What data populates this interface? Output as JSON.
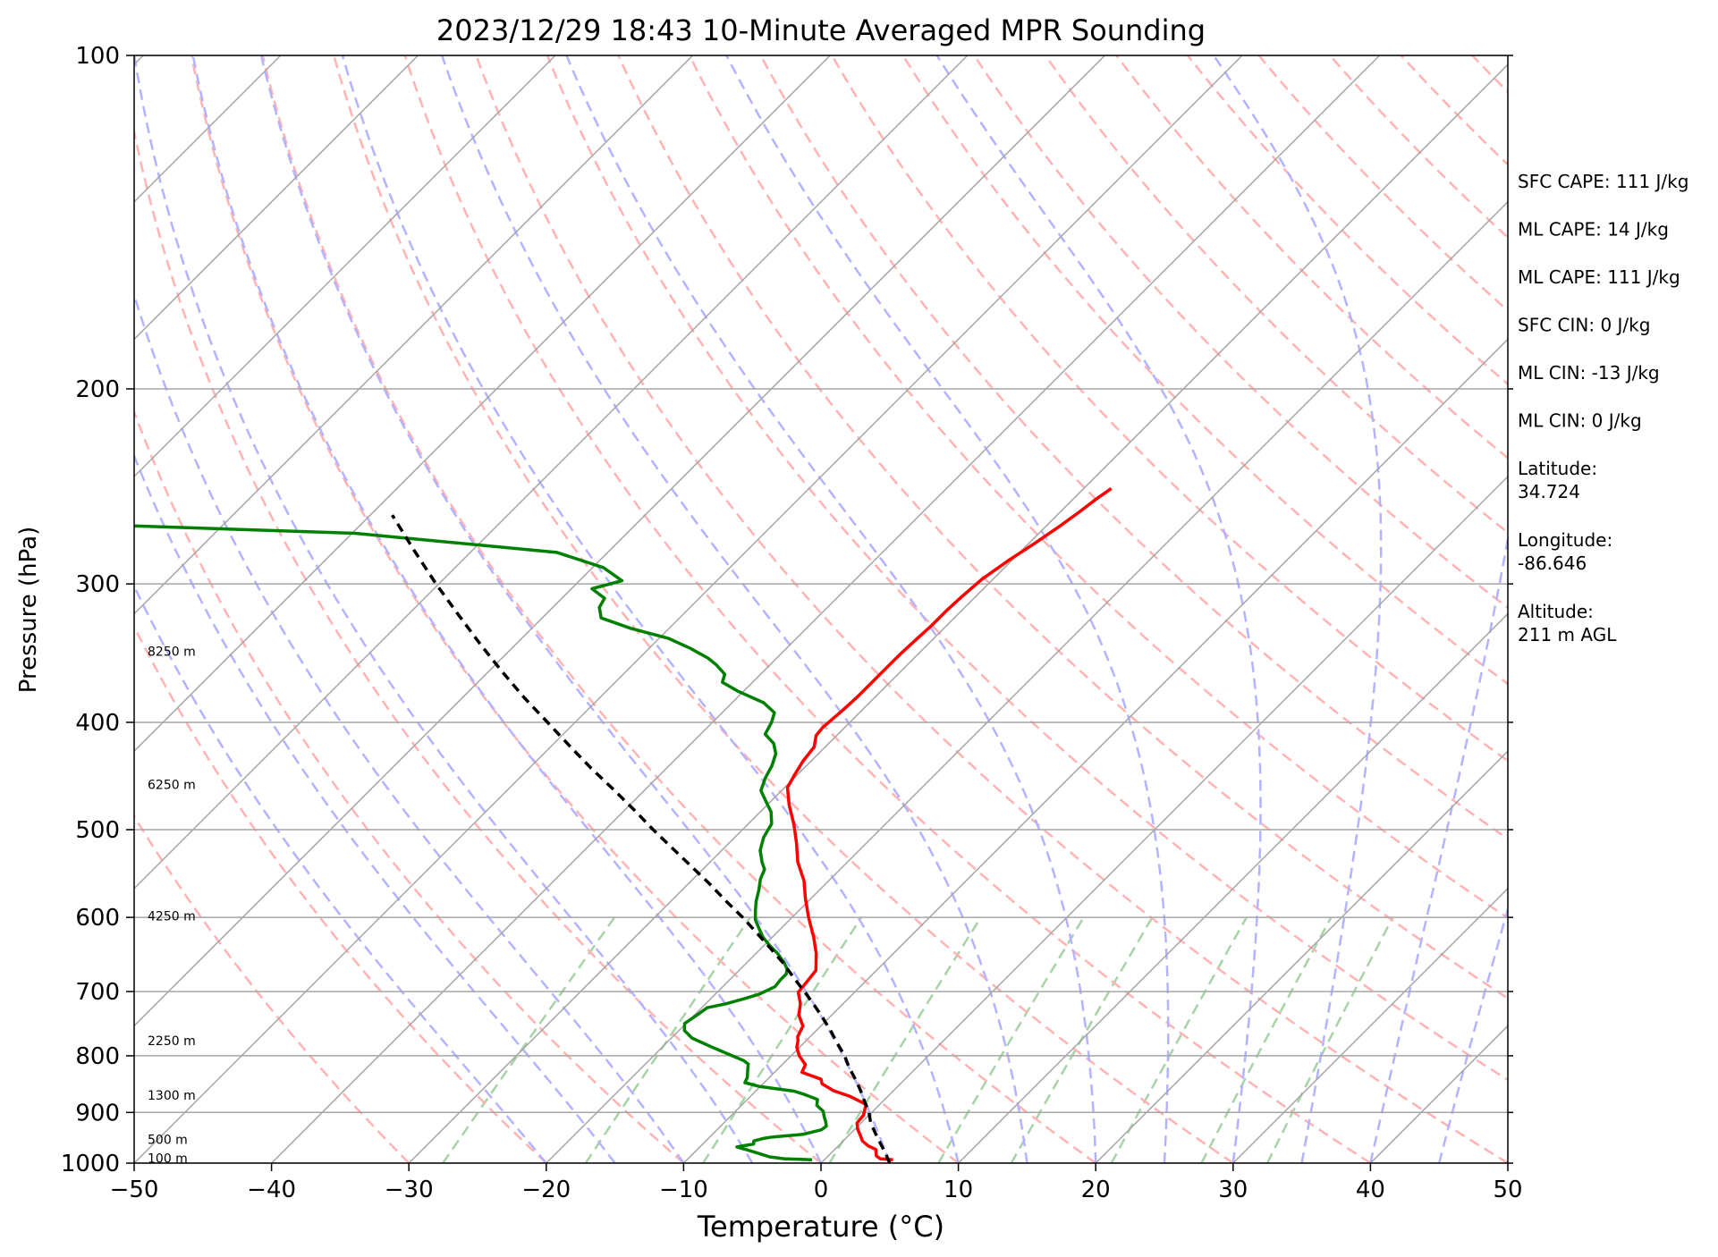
{
  "chart_data": {
    "type": "line",
    "subtype": "skew-t log-p",
    "title": "2023/12/29 18:43 10-Minute Averaged MPR Sounding",
    "xlabel": "Temperature (°C)",
    "ylabel": "Pressure (hPa)",
    "xlim": [
      -50,
      50
    ],
    "ylim": [
      1000,
      100
    ],
    "y_scale": "log",
    "x_ticks": [
      -50,
      -40,
      -30,
      -20,
      -10,
      0,
      10,
      20,
      30,
      40,
      50
    ],
    "x_tick_labels": [
      "−50",
      "−40",
      "−30",
      "−20",
      "−10",
      "0",
      "10",
      "20",
      "30",
      "40",
      "50"
    ],
    "y_ticks": [
      100,
      200,
      300,
      400,
      500,
      600,
      700,
      800,
      900,
      1000
    ],
    "y_tick_labels": [
      "100",
      "200",
      "300",
      "400",
      "500",
      "600",
      "700",
      "800",
      "900",
      "1000"
    ],
    "grid": true,
    "series": [
      {
        "style": "solid",
        "color": "#ff0000",
        "points": [
          [
            5.0,
            993
          ],
          [
            4.0,
            991
          ],
          [
            3.5,
            985
          ],
          [
            3.3,
            980
          ],
          [
            3.0,
            972
          ],
          [
            2.2,
            965
          ],
          [
            1.4,
            955
          ],
          [
            0.9,
            945
          ],
          [
            0.2,
            932
          ],
          [
            -0.3,
            920
          ],
          [
            -0.4,
            905
          ],
          [
            -0.7,
            895
          ],
          [
            -1.0,
            885
          ],
          [
            -2.8,
            870
          ],
          [
            -4.4,
            860
          ],
          [
            -5.7,
            848
          ],
          [
            -6.1,
            840
          ],
          [
            -8.0,
            828
          ],
          [
            -8.3,
            815
          ],
          [
            -9.4,
            800
          ],
          [
            -10.2,
            786
          ],
          [
            -10.6,
            775
          ],
          [
            -10.9,
            769
          ],
          [
            -11.3,
            752
          ],
          [
            -12.4,
            735
          ],
          [
            -13.1,
            718
          ],
          [
            -14.1,
            701
          ],
          [
            -14.2,
            690
          ],
          [
            -14.3,
            680
          ],
          [
            -14.4,
            670
          ],
          [
            -15.6,
            647
          ],
          [
            -17.0,
            625
          ],
          [
            -18.8,
            600
          ],
          [
            -20.4,
            577
          ],
          [
            -21.8,
            556
          ],
          [
            -23.6,
            535
          ],
          [
            -25.1,
            514
          ],
          [
            -26.6,
            495
          ],
          [
            -28.4,
            475
          ],
          [
            -29.8,
            458
          ],
          [
            -30.2,
            446
          ],
          [
            -30.6,
            433
          ],
          [
            -30.8,
            421
          ],
          [
            -31.5,
            411
          ],
          [
            -31.6,
            404
          ],
          [
            -31.4,
            390
          ],
          [
            -31.3,
            379
          ],
          [
            -31.3,
            367
          ],
          [
            -31.3,
            356
          ],
          [
            -31.3,
            347
          ],
          [
            -31.2,
            337
          ],
          [
            -31.1,
            327
          ],
          [
            -31.1,
            317
          ],
          [
            -31.0,
            308
          ],
          [
            -30.8,
            297
          ],
          [
            -30.2,
            285
          ],
          [
            -29.6,
            276
          ],
          [
            -29.0,
            266
          ],
          [
            -28.6,
            258
          ],
          [
            -28.3,
            251
          ],
          [
            -28.0,
            246
          ]
        ]
      },
      {
        "style": "solid",
        "color": "#008000",
        "points": [
          [
            -0.9,
            993
          ],
          [
            -3.0,
            991
          ],
          [
            -4.2,
            987
          ],
          [
            -5.4,
            979
          ],
          [
            -6.3,
            973
          ],
          [
            -7.3,
            967
          ],
          [
            -6.3,
            961
          ],
          [
            -6.5,
            955
          ],
          [
            -6.0,
            950
          ],
          [
            -5.4,
            947
          ],
          [
            -3.4,
            942
          ],
          [
            -2.4,
            933
          ],
          [
            -2.3,
            926
          ],
          [
            -2.7,
            917
          ],
          [
            -3.2,
            907
          ],
          [
            -3.6,
            898
          ],
          [
            -4.5,
            887
          ],
          [
            -4.9,
            876
          ],
          [
            -6.2,
            867
          ],
          [
            -7.2,
            861
          ],
          [
            -10.0,
            853
          ],
          [
            -11.4,
            846
          ],
          [
            -11.6,
            837
          ],
          [
            -12.2,
            822
          ],
          [
            -12.5,
            814
          ],
          [
            -13.1,
            808
          ],
          [
            -15.0,
            795
          ],
          [
            -16.5,
            785
          ],
          [
            -18.5,
            771
          ],
          [
            -19.6,
            759
          ],
          [
            -20.1,
            748
          ],
          [
            -19.8,
            735
          ],
          [
            -19.6,
            724
          ],
          [
            -18.5,
            718
          ],
          [
            -17.5,
            710
          ],
          [
            -16.8,
            704
          ],
          [
            -16.2,
            693
          ],
          [
            -16.3,
            683
          ],
          [
            -16.3,
            675
          ],
          [
            -16.6,
            668
          ],
          [
            -17.3,
            659
          ],
          [
            -18.4,
            647
          ],
          [
            -19.6,
            636
          ],
          [
            -20.7,
            625
          ],
          [
            -21.6,
            614
          ],
          [
            -22.5,
            603
          ],
          [
            -23.2,
            591
          ],
          [
            -23.8,
            580
          ],
          [
            -24.4,
            567
          ],
          [
            -25.1,
            554
          ],
          [
            -25.5,
            543
          ],
          [
            -26.2,
            535
          ],
          [
            -27.2,
            522
          ],
          [
            -27.9,
            508
          ],
          [
            -28.3,
            494
          ],
          [
            -29.2,
            482
          ],
          [
            -30.4,
            471
          ],
          [
            -31.5,
            461
          ],
          [
            -32.1,
            449
          ],
          [
            -32.5,
            438
          ],
          [
            -33.1,
            427
          ],
          [
            -34.0,
            418
          ],
          [
            -35.3,
            410
          ],
          [
            -35.7,
            400
          ],
          [
            -36.2,
            392
          ],
          [
            -37.7,
            384
          ],
          [
            -40.4,
            375
          ],
          [
            -42.2,
            368
          ],
          [
            -42.6,
            362
          ],
          [
            -43.9,
            355
          ],
          [
            -45.0,
            350
          ],
          [
            -47.0,
            343
          ],
          [
            -49.3,
            336
          ],
          [
            -52.8,
            329
          ],
          [
            -55.7,
            322
          ],
          [
            -56.6,
            315
          ],
          [
            -56.9,
            309
          ],
          [
            -58.5,
            303
          ],
          [
            -56.9,
            298
          ],
          [
            -59.2,
            290
          ],
          [
            -63.7,
            281
          ],
          [
            -79.8,
            270
          ],
          [
            -100,
            265
          ]
        ]
      },
      {
        "style": "dashed",
        "color": "#000000",
        "points": [
          [
            5.0,
            1000
          ],
          [
            4.0,
            980
          ],
          [
            2.9,
            960
          ],
          [
            1.8,
            940
          ],
          [
            0.7,
            920
          ],
          [
            -0.2,
            900
          ],
          [
            -1.3,
            880
          ],
          [
            -2.4,
            860
          ],
          [
            -3.6,
            840
          ],
          [
            -4.9,
            820
          ],
          [
            -6.1,
            800
          ],
          [
            -7.5,
            780
          ],
          [
            -8.9,
            760
          ],
          [
            -10.4,
            740
          ],
          [
            -12.0,
            720
          ],
          [
            -13.7,
            700
          ],
          [
            -15.5,
            680
          ],
          [
            -17.3,
            660
          ],
          [
            -19.3,
            640
          ],
          [
            -21.4,
            620
          ],
          [
            -23.6,
            600
          ],
          [
            -26.0,
            580
          ],
          [
            -28.4,
            560
          ],
          [
            -31.0,
            540
          ],
          [
            -33.7,
            520
          ],
          [
            -36.5,
            500
          ],
          [
            -39.3,
            480
          ],
          [
            -42.3,
            460
          ],
          [
            -45.5,
            440
          ],
          [
            -48.7,
            420
          ],
          [
            -52.0,
            400
          ],
          [
            -55.5,
            380
          ],
          [
            -59.0,
            360
          ],
          [
            -62.6,
            340
          ],
          [
            -66.3,
            320
          ],
          [
            -70.2,
            300
          ],
          [
            -74.2,
            280
          ],
          [
            -78.4,
            260
          ]
        ]
      }
    ],
    "height_labels": [
      "8250 m",
      "6250 m",
      "4250 m",
      "2250 m",
      "1300 m",
      "500 m",
      "100 m"
    ],
    "height_label_pressures": [
      345,
      455,
      598,
      775,
      868,
      952,
      990
    ]
  },
  "indices": [
    "SFC CAPE: 111 J/kg",
    "ML CAPE: 14 J/kg",
    "ML CAPE: 111 J/kg",
    "SFC CIN: 0 J/kg",
    "ML CIN: -13 J/kg",
    "ML CIN: 0 J/kg"
  ],
  "location": {
    "latitude_label": "Latitude:",
    "latitude_value": "34.724",
    "longitude_label": "Longitude:",
    "longitude_value": "-86.646",
    "altitude_label": "Altitude:",
    "altitude_value": "211 m AGL"
  },
  "colors": {
    "temperature": "#ff0000",
    "dewpoint": "#008000",
    "parcel": "#000000",
    "isotherms": "#a6a6a6",
    "dry_adiabats": "#ffb3b3",
    "moist_adiabats": "#b3b3ff",
    "mixing_ratio": "#a6d4a6"
  }
}
